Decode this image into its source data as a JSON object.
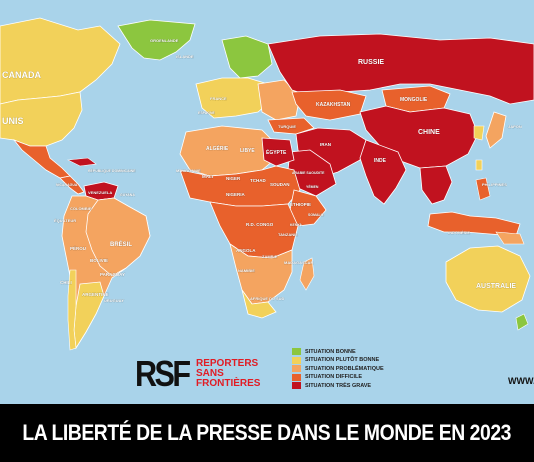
{
  "title": "LA LIBERTÉ DE LA PRESSE DANS LE MONDE EN 2023",
  "website": "WWW.R",
  "logo": {
    "mark": "RSF",
    "name_line1": "REPORTERS",
    "name_line2": "SANS FRONTIÈRES"
  },
  "legend": [
    {
      "label": "SITUATION BONNE",
      "color": "#8cc63f"
    },
    {
      "label": "SITUATION PLUTÔT BONNE",
      "color": "#f2d15a"
    },
    {
      "label": "SITUATION PROBLÉMATIQUE",
      "color": "#f4a460"
    },
    {
      "label": "SITUATION DIFFICILE",
      "color": "#e8612c"
    },
    {
      "label": "SITUATION TRÈS GRAVE",
      "color": "#c1121f"
    }
  ],
  "colors": {
    "sea": "#a9d3ea",
    "banner": "#000000",
    "rsf_red": "#e11c24"
  },
  "country_labels": {
    "canada": "CANADA",
    "usa": "UNIS",
    "groenland": "GROENLANDE",
    "islande": "ISLANDE",
    "russie": "RUSSIE",
    "kazakhstan": "KAZAKHSTAN",
    "mongolie": "MONGOLIE",
    "chine": "CHINE",
    "japon": "JAPON",
    "inde": "INDE",
    "philippines": "PHILIPPINES",
    "indonesie": "INDONÉSIE",
    "australie": "AUSTRALIE",
    "algerie": "ALGÉRIE",
    "libye": "LIBYE",
    "egypte": "ÉGYPTE",
    "mali": "MALI",
    "niger": "NIGER",
    "tchad": "TCHAD",
    "soudan": "SOUDAN",
    "ethiopie": "ÉTHIOPIE",
    "nigeria": "NIGERIA",
    "mauritanie": "MAURITANIE",
    "rdc": "R.D. CONGO",
    "tanzanie": "TANZANIE",
    "angola": "ANGOLA",
    "zambie": "ZAMBIE",
    "madagascar": "MADAGASCAR",
    "namibie": "NAMIBIE",
    "afrique_sud": "AFRIQUE DU SUD",
    "bresil": "BRÉSIL",
    "perou": "PÉROU",
    "bolivie": "BOLIVIE",
    "chili": "CHILI",
    "argentine": "ARGENTINE",
    "paraguay": "PARAGUAY",
    "uruguay": "URUGUAY",
    "venezuela": "VENEZUELA",
    "colombie": "COLOMBIE",
    "equateur": "ÉQUATEUR",
    "guyana": "GUYANA",
    "republique_dominicaine": "RÉPUBLIQUE DOMINICAINE",
    "nicaragua": "NICARAGUA",
    "france": "FRANCE",
    "espagne": "ESPAGNE",
    "turquie": "TURQUIE",
    "iran": "IRAN",
    "arabie": "ARABIE SAOUDITE",
    "yemen": "YÉMEN",
    "somalie": "SOMALIE",
    "kenya": "KENYA"
  }
}
